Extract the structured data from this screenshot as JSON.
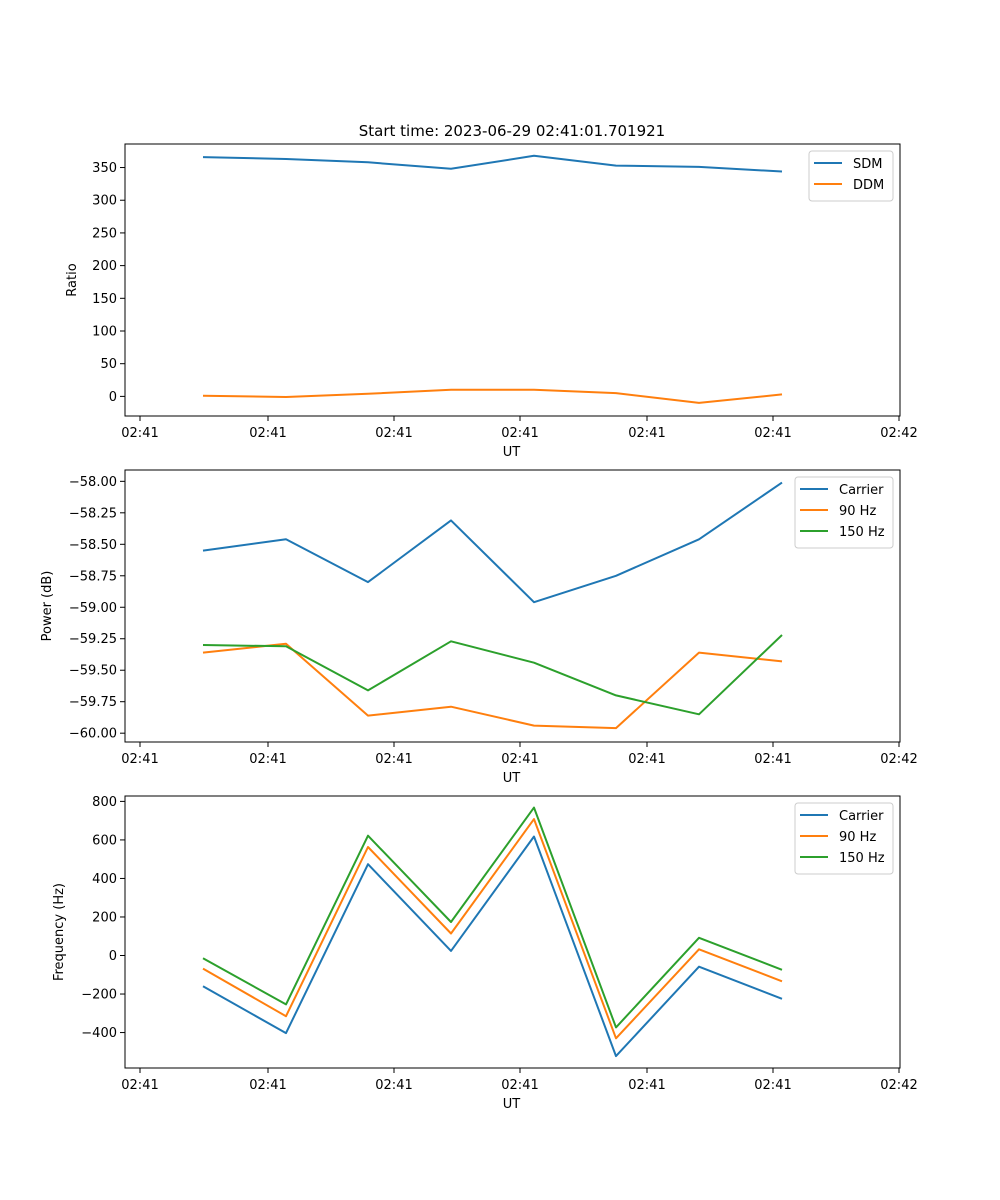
{
  "figure": {
    "title": "Start time: 2023-06-29 02:41:01.701921"
  },
  "chart_data": [
    {
      "type": "line",
      "xlabel": "UT",
      "ylabel": "Ratio",
      "x_tick_labels": [
        "02:41",
        "02:41",
        "02:41",
        "02:41",
        "02:41",
        "02:41",
        "02:41",
        "02:42"
      ],
      "y_ticks": [
        0,
        50,
        100,
        150,
        200,
        250,
        300,
        350
      ],
      "ylim": [
        -30,
        386
      ],
      "legend_position": "top-right",
      "grid": false,
      "series": [
        {
          "name": "SDM",
          "color": "#1f77b4",
          "values": [
            366,
            363,
            358,
            348,
            368,
            353,
            351,
            344
          ]
        },
        {
          "name": "DDM",
          "color": "#ff7f0e",
          "values": [
            1,
            -1,
            4,
            10,
            10,
            5,
            -10,
            3
          ]
        }
      ]
    },
    {
      "type": "line",
      "xlabel": "UT",
      "ylabel": "Power (dB)",
      "x_tick_labels": [
        "02:41",
        "02:41",
        "02:41",
        "02:41",
        "02:41",
        "02:41",
        "02:41",
        "02:42"
      ],
      "y_ticks": [
        -60.0,
        -59.75,
        -59.5,
        -59.25,
        -59.0,
        -58.75,
        -58.5,
        -58.25,
        -58.0
      ],
      "y_tick_labels": [
        "−60.00",
        "−59.75",
        "−59.50",
        "−59.25",
        "−59.00",
        "−58.75",
        "−58.50",
        "−58.25",
        "−58.00"
      ],
      "ylim": [
        -60.07,
        -57.91
      ],
      "legend_position": "top-right",
      "grid": false,
      "series": [
        {
          "name": "Carrier",
          "color": "#1f77b4",
          "values": [
            -58.55,
            -58.46,
            -58.8,
            -58.31,
            -58.96,
            -58.75,
            -58.46,
            -58.01
          ]
        },
        {
          "name": "90 Hz",
          "color": "#ff7f0e",
          "values": [
            -59.36,
            -59.29,
            -59.86,
            -59.79,
            -59.94,
            -59.96,
            -59.36,
            -59.43
          ]
        },
        {
          "name": "150 Hz",
          "color": "#2ca02c",
          "values": [
            -59.3,
            -59.31,
            -59.66,
            -59.27,
            -59.44,
            -59.7,
            -59.85,
            -59.22
          ]
        }
      ]
    },
    {
      "type": "line",
      "xlabel": "UT",
      "ylabel": "Frequency (Hz)",
      "x_tick_labels": [
        "02:41",
        "02:41",
        "02:41",
        "02:41",
        "02:41",
        "02:41",
        "02:41",
        "02:42"
      ],
      "y_ticks": [
        -400,
        -200,
        0,
        200,
        400,
        600,
        800
      ],
      "y_tick_labels": [
        "−400",
        "−200",
        "0",
        "200",
        "400",
        "600",
        "800"
      ],
      "ylim": [
        -584,
        828
      ],
      "legend_position": "top-right",
      "grid": false,
      "series": [
        {
          "name": "Carrier",
          "color": "#1f77b4",
          "values": [
            -160,
            -403,
            474,
            24,
            618,
            -522,
            -58,
            -225
          ]
        },
        {
          "name": "90 Hz",
          "color": "#ff7f0e",
          "values": [
            -68,
            -315,
            563,
            114,
            708,
            -430,
            32,
            -134
          ]
        },
        {
          "name": "150 Hz",
          "color": "#2ca02c",
          "values": [
            -14,
            -254,
            622,
            174,
            768,
            -373,
            92,
            -74
          ]
        }
      ]
    }
  ]
}
